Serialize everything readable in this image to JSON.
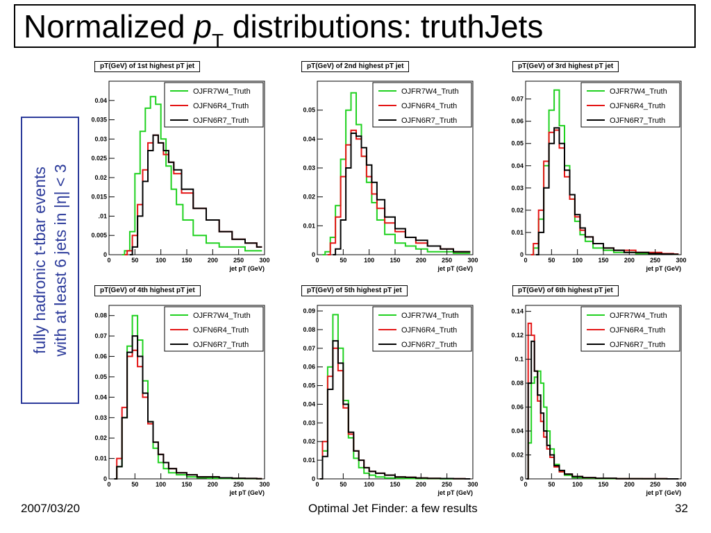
{
  "slide": {
    "title_prefix": "Normalized ",
    "title_var": "p",
    "title_sub": "T",
    "title_suffix": " distributions: truthJets",
    "side_line1": "fully hadronic t-tbar events",
    "side_line2": "with at least 6 jets in |η| < 3",
    "footer_date": "2007/03/20",
    "footer_center": "Optimal Jet Finder: a few results",
    "footer_page": "32"
  },
  "colors": {
    "green": "#1fd11f",
    "red": "#e41414",
    "black": "#000000",
    "side_text": "#2b3a9a"
  },
  "chart_data": [
    {
      "type": "line",
      "title": "pT(GeV) of 1st highest pT jet",
      "xlabel": "jet pT (GeV)",
      "xlim": [
        0,
        300
      ],
      "ylim": [
        0,
        0.045
      ],
      "x_ticks": [
        0,
        50,
        100,
        150,
        200,
        250,
        300
      ],
      "y_ticks": [
        0.005,
        0.01,
        0.015,
        0.02,
        0.025,
        0.03,
        0.035,
        0.04
      ],
      "y_tick_labels": [
        "0.005",
        ".01",
        "0.015",
        "0.02",
        "0.025",
        "0.03",
        "0.035",
        "0.04"
      ],
      "legend_position": "top-right",
      "series": [
        {
          "name": "OJFR7W4_Truth",
          "color": "green",
          "x": [
            25,
            35,
            45,
            55,
            65,
            75,
            85,
            95,
            105,
            115,
            125,
            135,
            150,
            175,
            200,
            225,
            250,
            275,
            295
          ],
          "y": [
            0,
            0.001,
            0.006,
            0.021,
            0.032,
            0.038,
            0.041,
            0.039,
            0.03,
            0.023,
            0.017,
            0.013,
            0.009,
            0.005,
            0.003,
            0.002,
            0.002,
            0.001,
            0.001
          ]
        },
        {
          "name": "OJFN6R4_Truth",
          "color": "red",
          "x": [
            30,
            40,
            50,
            60,
            70,
            80,
            90,
            100,
            110,
            120,
            130,
            150,
            175,
            200,
            225,
            250,
            275,
            295
          ],
          "y": [
            0,
            0.001,
            0.005,
            0.013,
            0.022,
            0.029,
            0.031,
            0.029,
            0.026,
            0.024,
            0.021,
            0.016,
            0.012,
            0.009,
            0.006,
            0.004,
            0.003,
            0.002
          ]
        },
        {
          "name": "OJFN6R7_Truth",
          "color": "black",
          "x": [
            40,
            50,
            60,
            70,
            80,
            90,
            100,
            110,
            120,
            130,
            150,
            175,
            200,
            225,
            250,
            275,
            295
          ],
          "y": [
            0,
            0.002,
            0.01,
            0.019,
            0.027,
            0.031,
            0.029,
            0.027,
            0.024,
            0.022,
            0.017,
            0.012,
            0.009,
            0.006,
            0.004,
            0.003,
            0.002
          ]
        }
      ]
    },
    {
      "type": "line",
      "title": "pT(GeV) of 2nd highest pT jet",
      "xlabel": "jet pT (GeV)",
      "xlim": [
        0,
        300
      ],
      "ylim": [
        0,
        0.06
      ],
      "x_ticks": [
        0,
        50,
        100,
        150,
        200,
        250,
        300
      ],
      "y_ticks": [
        0.01,
        0.02,
        0.03,
        0.04,
        0.05
      ],
      "y_tick_labels": [
        "0.01",
        "0.02",
        "0.03",
        "0.04",
        "0.05"
      ],
      "legend_position": "top-right",
      "series": [
        {
          "name": "OJFR7W4_Truth",
          "color": "green",
          "x": [
            10,
            20,
            30,
            40,
            50,
            60,
            70,
            80,
            90,
            100,
            110,
            120,
            140,
            160,
            180,
            200,
            225,
            250,
            275,
            295
          ],
          "y": [
            0,
            0.001,
            0.006,
            0.017,
            0.033,
            0.05,
            0.056,
            0.045,
            0.034,
            0.025,
            0.018,
            0.012,
            0.007,
            0.004,
            0.003,
            0.002,
            0.001,
            0.001,
            0.0005,
            0.0005
          ]
        },
        {
          "name": "OJFN6R4_Truth",
          "color": "red",
          "x": [
            20,
            30,
            40,
            50,
            60,
            70,
            80,
            90,
            100,
            110,
            120,
            140,
            160,
            180,
            200,
            225,
            250,
            275,
            295
          ],
          "y": [
            0,
            0.004,
            0.013,
            0.027,
            0.038,
            0.043,
            0.04,
            0.034,
            0.027,
            0.021,
            0.016,
            0.011,
            0.008,
            0.006,
            0.004,
            0.003,
            0.002,
            0.001,
            0.001
          ]
        },
        {
          "name": "OJFN6R7_Truth",
          "color": "black",
          "x": [
            30,
            40,
            50,
            60,
            70,
            80,
            90,
            100,
            110,
            120,
            140,
            160,
            180,
            200,
            225,
            250,
            275,
            295
          ],
          "y": [
            0,
            0.002,
            0.012,
            0.03,
            0.042,
            0.041,
            0.037,
            0.031,
            0.025,
            0.019,
            0.013,
            0.009,
            0.006,
            0.005,
            0.003,
            0.002,
            0.001,
            0.001
          ]
        }
      ]
    },
    {
      "type": "line",
      "title": "pT(GeV) of 3rd highest pT jet",
      "xlabel": "jet pT (GeV)",
      "xlim": [
        0,
        300
      ],
      "ylim": [
        0,
        0.078
      ],
      "x_ticks": [
        0,
        50,
        100,
        150,
        200,
        250,
        300
      ],
      "y_ticks": [
        0.01,
        0.02,
        0.03,
        0.04,
        0.05,
        0.06,
        0.07
      ],
      "y_tick_labels": [
        "0.01",
        "0.02",
        "0.03",
        "0.04",
        "0.05",
        "0.06",
        "0.07"
      ],
      "legend_position": "top-right",
      "series": [
        {
          "name": "OJFR7W4_Truth",
          "color": "green",
          "x": [
            10,
            20,
            30,
            40,
            50,
            60,
            70,
            80,
            90,
            100,
            110,
            120,
            140,
            160,
            180,
            200,
            225,
            250,
            275,
            295
          ],
          "y": [
            0,
            0.003,
            0.016,
            0.04,
            0.065,
            0.074,
            0.058,
            0.04,
            0.025,
            0.015,
            0.009,
            0.006,
            0.003,
            0.002,
            0.001,
            0.001,
            0.0005,
            0.0005,
            0.0003,
            0.0002
          ]
        },
        {
          "name": "OJFN6R4_Truth",
          "color": "red",
          "x": [
            10,
            20,
            30,
            40,
            50,
            60,
            70,
            80,
            90,
            100,
            110,
            120,
            140,
            160,
            180,
            200,
            225,
            250,
            275,
            295
          ],
          "y": [
            0,
            0.005,
            0.02,
            0.042,
            0.055,
            0.056,
            0.048,
            0.035,
            0.025,
            0.017,
            0.011,
            0.008,
            0.005,
            0.003,
            0.002,
            0.002,
            0.001,
            0.001,
            0.0005,
            0.0003
          ]
        },
        {
          "name": "OJFN6R7_Truth",
          "color": "black",
          "x": [
            20,
            30,
            40,
            50,
            60,
            70,
            80,
            90,
            100,
            110,
            120,
            140,
            160,
            180,
            200,
            225,
            250,
            275,
            295
          ],
          "y": [
            0,
            0.01,
            0.03,
            0.05,
            0.057,
            0.05,
            0.038,
            0.027,
            0.018,
            0.012,
            0.008,
            0.005,
            0.003,
            0.002,
            0.001,
            0.001,
            0.0005,
            0.0003,
            0.0002
          ]
        }
      ]
    },
    {
      "type": "line",
      "title": "pT(GeV) of 4th highest pT jet",
      "xlabel": "jet pT (GeV)",
      "xlim": [
        0,
        300
      ],
      "ylim": [
        0,
        0.085
      ],
      "x_ticks": [
        0,
        50,
        100,
        150,
        200,
        250,
        300
      ],
      "y_ticks": [
        0.01,
        0.02,
        0.03,
        0.04,
        0.05,
        0.06,
        0.07,
        0.08
      ],
      "y_tick_labels": [
        "0.01",
        "0.02",
        "0.03",
        "0.04",
        "0.05",
        "0.06",
        "0.07",
        "0.08"
      ],
      "legend_position": "top-right",
      "series": [
        {
          "name": "OJFR7W4_Truth",
          "color": "green",
          "x": [
            10,
            20,
            30,
            40,
            50,
            60,
            70,
            80,
            90,
            100,
            110,
            120,
            140,
            160,
            180,
            200,
            225,
            250,
            275,
            295
          ],
          "y": [
            0,
            0.006,
            0.03,
            0.065,
            0.08,
            0.068,
            0.048,
            0.028,
            0.015,
            0.008,
            0.005,
            0.003,
            0.002,
            0.001,
            0.0005,
            0.0003,
            0.0002,
            0.0001,
            0.0001,
            0
          ]
        },
        {
          "name": "OJFN6R4_Truth",
          "color": "red",
          "x": [
            10,
            20,
            30,
            40,
            50,
            60,
            70,
            80,
            90,
            100,
            110,
            120,
            140,
            160,
            180,
            200,
            225,
            250,
            275,
            295
          ],
          "y": [
            0,
            0.01,
            0.035,
            0.06,
            0.063,
            0.055,
            0.04,
            0.027,
            0.018,
            0.012,
            0.008,
            0.005,
            0.003,
            0.002,
            0.001,
            0.001,
            0.0005,
            0.0003,
            0.0002,
            0.0001
          ]
        },
        {
          "name": "OJFN6R7_Truth",
          "color": "black",
          "x": [
            10,
            20,
            30,
            40,
            50,
            60,
            70,
            80,
            90,
            100,
            110,
            120,
            140,
            160,
            180,
            200,
            225,
            250,
            275,
            295
          ],
          "y": [
            0,
            0.006,
            0.03,
            0.062,
            0.07,
            0.06,
            0.042,
            0.028,
            0.018,
            0.012,
            0.008,
            0.005,
            0.003,
            0.002,
            0.001,
            0.001,
            0.0005,
            0.0003,
            0.0002,
            0.0001
          ]
        }
      ]
    },
    {
      "type": "line",
      "title": "pT(GeV) of 5th highest pT jet",
      "xlabel": "jet pT (GeV)",
      "xlim": [
        0,
        300
      ],
      "ylim": [
        0,
        0.093
      ],
      "x_ticks": [
        0,
        50,
        100,
        150,
        200,
        250,
        300
      ],
      "y_ticks": [
        0.01,
        0.02,
        0.03,
        0.04,
        0.05,
        0.06,
        0.07,
        0.08,
        0.09
      ],
      "y_tick_labels": [
        "0.01",
        "0.02",
        "0.03",
        "0.04",
        "0.05",
        "0.06",
        "0.07",
        "0.08",
        "0.09"
      ],
      "legend_position": "top-right",
      "series": [
        {
          "name": "OJFR7W4_Truth",
          "color": "green",
          "x": [
            5,
            15,
            25,
            35,
            45,
            55,
            65,
            75,
            85,
            95,
            105,
            120,
            140,
            160,
            180,
            200,
            225,
            250,
            275,
            295
          ],
          "y": [
            0,
            0.015,
            0.06,
            0.088,
            0.07,
            0.042,
            0.022,
            0.011,
            0.006,
            0.003,
            0.002,
            0.001,
            0.0005,
            0.0003,
            0.0002,
            0.0001,
            0.0001,
            0,
            0,
            0
          ]
        },
        {
          "name": "OJFN6R4_Truth",
          "color": "red",
          "x": [
            5,
            15,
            25,
            35,
            45,
            55,
            65,
            75,
            85,
            95,
            105,
            120,
            140,
            160,
            180,
            200,
            225,
            250,
            275,
            295
          ],
          "y": [
            0,
            0.02,
            0.055,
            0.07,
            0.058,
            0.038,
            0.024,
            0.015,
            0.01,
            0.006,
            0.004,
            0.003,
            0.002,
            0.001,
            0.0008,
            0.0005,
            0.0003,
            0.0002,
            0.0001,
            0
          ]
        },
        {
          "name": "OJFN6R7_Truth",
          "color": "black",
          "x": [
            5,
            15,
            25,
            35,
            45,
            55,
            65,
            75,
            85,
            95,
            105,
            120,
            140,
            160,
            180,
            200,
            225,
            250,
            275,
            295
          ],
          "y": [
            0,
            0.012,
            0.048,
            0.074,
            0.062,
            0.04,
            0.025,
            0.015,
            0.01,
            0.006,
            0.004,
            0.003,
            0.002,
            0.001,
            0.0008,
            0.0005,
            0.0003,
            0.0002,
            0.0001,
            0
          ]
        }
      ]
    },
    {
      "type": "line",
      "title": "pT(GeV) of 6th highest pT jet",
      "xlabel": "jet pT (GeV)",
      "xlim": [
        0,
        300
      ],
      "ylim": [
        0,
        0.145
      ],
      "x_ticks": [
        0,
        50,
        100,
        150,
        200,
        250,
        300
      ],
      "y_ticks": [
        0.02,
        0.04,
        0.06,
        0.08,
        0.1,
        0.12,
        0.14
      ],
      "y_tick_labels": [
        "0.02",
        "0.04",
        "0.06",
        "0.08",
        "0.1",
        "0.12",
        "0.14"
      ],
      "legend_position": "top-right",
      "series": [
        {
          "name": "OJFR7W4_Truth",
          "color": "green",
          "x": [
            2,
            8,
            14,
            20,
            26,
            32,
            38,
            44,
            50,
            60,
            70,
            80,
            100,
            120,
            150,
            200,
            250,
            295
          ],
          "y": [
            0,
            0.03,
            0.08,
            0.085,
            0.09,
            0.08,
            0.06,
            0.04,
            0.025,
            0.012,
            0.006,
            0.003,
            0.001,
            0.0005,
            0.0002,
            0.0001,
            0,
            0
          ]
        },
        {
          "name": "OJFN6R4_Truth",
          "color": "red",
          "x": [
            2,
            8,
            14,
            20,
            26,
            32,
            38,
            44,
            50,
            60,
            70,
            80,
            100,
            120,
            150,
            200,
            250,
            295
          ],
          "y": [
            0,
            0.13,
            0.12,
            0.09,
            0.065,
            0.048,
            0.035,
            0.025,
            0.018,
            0.01,
            0.006,
            0.004,
            0.002,
            0.001,
            0.0005,
            0.0002,
            0.0001,
            0
          ]
        },
        {
          "name": "OJFN6R7_Truth",
          "color": "black",
          "x": [
            2,
            8,
            14,
            20,
            26,
            32,
            38,
            44,
            50,
            60,
            70,
            80,
            100,
            120,
            150,
            200,
            250,
            295
          ],
          "y": [
            0,
            0.08,
            0.115,
            0.09,
            0.07,
            0.055,
            0.04,
            0.028,
            0.02,
            0.011,
            0.007,
            0.004,
            0.002,
            0.001,
            0.0005,
            0.0002,
            0.0001,
            0
          ]
        }
      ]
    }
  ]
}
